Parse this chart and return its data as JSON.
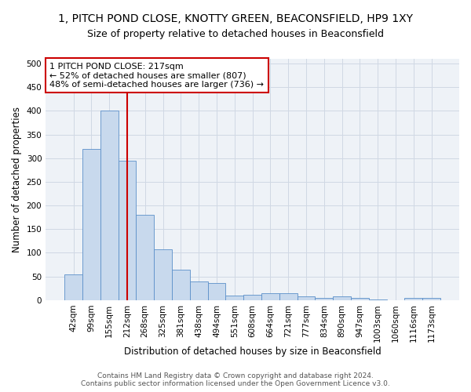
{
  "title": "1, PITCH POND CLOSE, KNOTTY GREEN, BEACONSFIELD, HP9 1XY",
  "subtitle": "Size of property relative to detached houses in Beaconsfield",
  "xlabel": "Distribution of detached houses by size in Beaconsfield",
  "ylabel": "Number of detached properties",
  "footer_line1": "Contains HM Land Registry data © Crown copyright and database right 2024.",
  "footer_line2": "Contains public sector information licensed under the Open Government Licence v3.0.",
  "annotation_line1": "1 PITCH POND CLOSE: 217sqm",
  "annotation_line2": "← 52% of detached houses are smaller (807)",
  "annotation_line3": "48% of semi-detached houses are larger (736) →",
  "bar_color": "#c8d9ed",
  "bar_edge_color": "#5b8fc9",
  "vline_color": "#cc0000",
  "annotation_box_color": "#cc0000",
  "grid_color": "#d0d8e4",
  "bg_color": "#eef2f7",
  "categories": [
    "42sqm",
    "99sqm",
    "155sqm",
    "212sqm",
    "268sqm",
    "325sqm",
    "381sqm",
    "438sqm",
    "494sqm",
    "551sqm",
    "608sqm",
    "664sqm",
    "721sqm",
    "777sqm",
    "834sqm",
    "890sqm",
    "947sqm",
    "1003sqm",
    "1060sqm",
    "1116sqm",
    "1173sqm"
  ],
  "values": [
    55,
    320,
    400,
    295,
    180,
    108,
    65,
    40,
    36,
    10,
    11,
    15,
    15,
    8,
    5,
    8,
    5,
    2,
    0,
    4,
    5
  ],
  "ylim": [
    0,
    510
  ],
  "yticks": [
    0,
    50,
    100,
    150,
    200,
    250,
    300,
    350,
    400,
    450,
    500
  ],
  "vline_x": 3.0,
  "title_fontsize": 10,
  "subtitle_fontsize": 9,
  "axis_label_fontsize": 8.5,
  "tick_fontsize": 7.5,
  "annotation_fontsize": 8,
  "footer_fontsize": 6.5
}
